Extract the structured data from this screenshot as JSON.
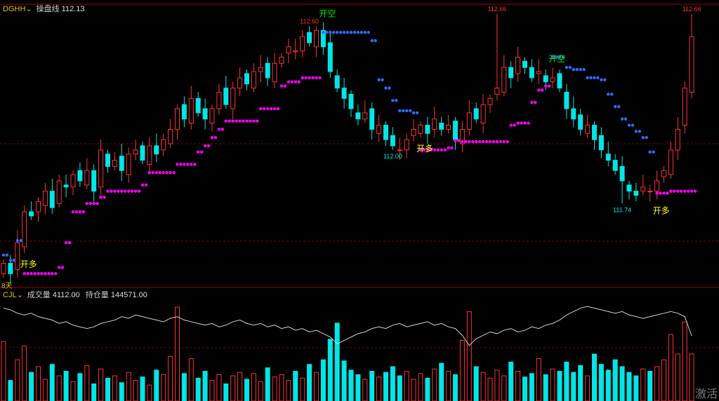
{
  "price_header": {
    "code": "DGHH",
    "indicator_label": "操盘线",
    "indicator_value": "112.13"
  },
  "volume_header": {
    "code": "CJL",
    "volume_label": "成交量",
    "volume_value": "4112.00",
    "oi_label": "持仓量",
    "oi_value": "144571.00"
  },
  "period_label": "8天",
  "watermark": "激活",
  "colors": {
    "up": "#ff3232",
    "down": "#00e6e6",
    "sar_long": "#ff00ff",
    "sar_short": "#2a6cff",
    "signal_long": "#ffff00",
    "signal_short": "#00e600",
    "grid": "#7a0000",
    "oi_line": "#d0d0d0"
  },
  "chart_data": [
    {
      "type": "candlestick",
      "ylim": [
        111.35,
        112.7
      ],
      "grid": true,
      "close": [
        111.45,
        111.4,
        111.55,
        111.7,
        111.68,
        111.75,
        111.8,
        111.72,
        111.85,
        111.82,
        111.88,
        111.85,
        111.9,
        111.8,
        112.0,
        111.92,
        111.95,
        111.9,
        111.98,
        112.0,
        111.95,
        112.02,
        111.98,
        112.05,
        112.1,
        112.2,
        112.15,
        112.25,
        112.18,
        112.15,
        112.2,
        112.28,
        112.22,
        112.3,
        112.35,
        112.32,
        112.38,
        112.4,
        112.35,
        112.42,
        112.45,
        112.5,
        112.48,
        112.55,
        112.52,
        112.58,
        112.5,
        112.38,
        112.3,
        112.25,
        112.2,
        112.15,
        112.18,
        112.1,
        112.12,
        112.05,
        112.02,
        112.0,
        112.05,
        112.1,
        112.12,
        112.08,
        112.15,
        112.1,
        112.12,
        112.05,
        112.1,
        112.18,
        112.15,
        112.22,
        112.25,
        112.3,
        112.4,
        112.35,
        112.45,
        112.4,
        112.35,
        112.38,
        112.33,
        112.35,
        112.3,
        112.2,
        112.15,
        112.1,
        112.12,
        112.05,
        112.0,
        111.95,
        111.9,
        111.85,
        111.8,
        111.78,
        111.82,
        111.8,
        111.85,
        111.9,
        112.0,
        112.1,
        112.3,
        112.55
      ],
      "annotations": [
        {
          "index": 44,
          "text": "112.60",
          "kind": "high"
        },
        {
          "index": 71,
          "text": "112.66",
          "kind": "high"
        },
        {
          "index": 99,
          "text": "112.66",
          "kind": "high"
        },
        {
          "index": 56,
          "text": "112.00",
          "kind": "low"
        },
        {
          "index": 89,
          "text": "111.74",
          "kind": "low"
        }
      ],
      "signals": [
        {
          "index": 3,
          "text": "开多",
          "side": "long"
        },
        {
          "index": 46,
          "text": "开空",
          "side": "short"
        },
        {
          "index": 60,
          "text": "开多",
          "side": "long"
        },
        {
          "index": 79,
          "text": "开空",
          "side": "short"
        },
        {
          "index": 94,
          "text": "开多",
          "side": "long"
        }
      ]
    },
    {
      "type": "bar+line",
      "ylim_volume": [
        0,
        9000
      ],
      "ylim_oi": [
        143500,
        146800
      ],
      "volume": [
        5200,
        1800,
        3600,
        4800,
        2500,
        3000,
        1900,
        3200,
        2200,
        2600,
        1700,
        2400,
        3100,
        1500,
        2800,
        2000,
        2200,
        1600,
        2500,
        1800,
        2100,
        1400,
        2700,
        2300,
        3900,
        8200,
        2400,
        3700,
        2000,
        2600,
        1800,
        2300,
        1500,
        2200,
        2500,
        1900,
        2400,
        1700,
        2900,
        2100,
        2300,
        1800,
        2600,
        2000,
        3200,
        2500,
        3600,
        5400,
        6800,
        3500,
        2700,
        2300,
        1900,
        2600,
        2100,
        2500,
        3000,
        2200,
        2600,
        1900,
        2400,
        2000,
        2800,
        3300,
        2600,
        2300,
        5300,
        7800,
        3000,
        2500,
        2000,
        2700,
        2200,
        3400,
        2600,
        2100,
        2400,
        3700,
        2300,
        2800,
        2600,
        3400,
        2500,
        3100,
        2200,
        4100,
        3200,
        2700,
        3600,
        3000,
        2500,
        2200,
        2800,
        2600,
        3000,
        3600,
        5800,
        4100,
        6900,
        4112
      ],
      "open_interest": [
        146200,
        146100,
        145900,
        145800,
        145900,
        145700,
        145600,
        145500,
        145300,
        145400,
        145200,
        145100,
        145000,
        145100,
        145300,
        145400,
        145500,
        145700,
        145600,
        145800,
        145700,
        145600,
        145500,
        145400,
        145600,
        145700,
        145500,
        145400,
        145300,
        145200,
        145300,
        145100,
        145200,
        145400,
        145500,
        145300,
        145200,
        145300,
        145100,
        145200,
        145000,
        145100,
        144900,
        145000,
        144800,
        144900,
        144700,
        144500,
        144100,
        144300,
        144500,
        144700,
        144800,
        145000,
        145100,
        145000,
        145200,
        145300,
        145100,
        145200,
        145300,
        145400,
        145200,
        145300,
        145100,
        145000,
        144600,
        144000,
        144400,
        144600,
        144800,
        144700,
        144900,
        145000,
        144800,
        144900,
        145100,
        145000,
        145200,
        145300,
        145500,
        145800,
        146000,
        146200,
        146300,
        146200,
        146100,
        146000,
        145900,
        146000,
        145800,
        145700,
        145600,
        145700,
        145800,
        145900,
        146000,
        145900,
        145700,
        144571
      ]
    }
  ]
}
